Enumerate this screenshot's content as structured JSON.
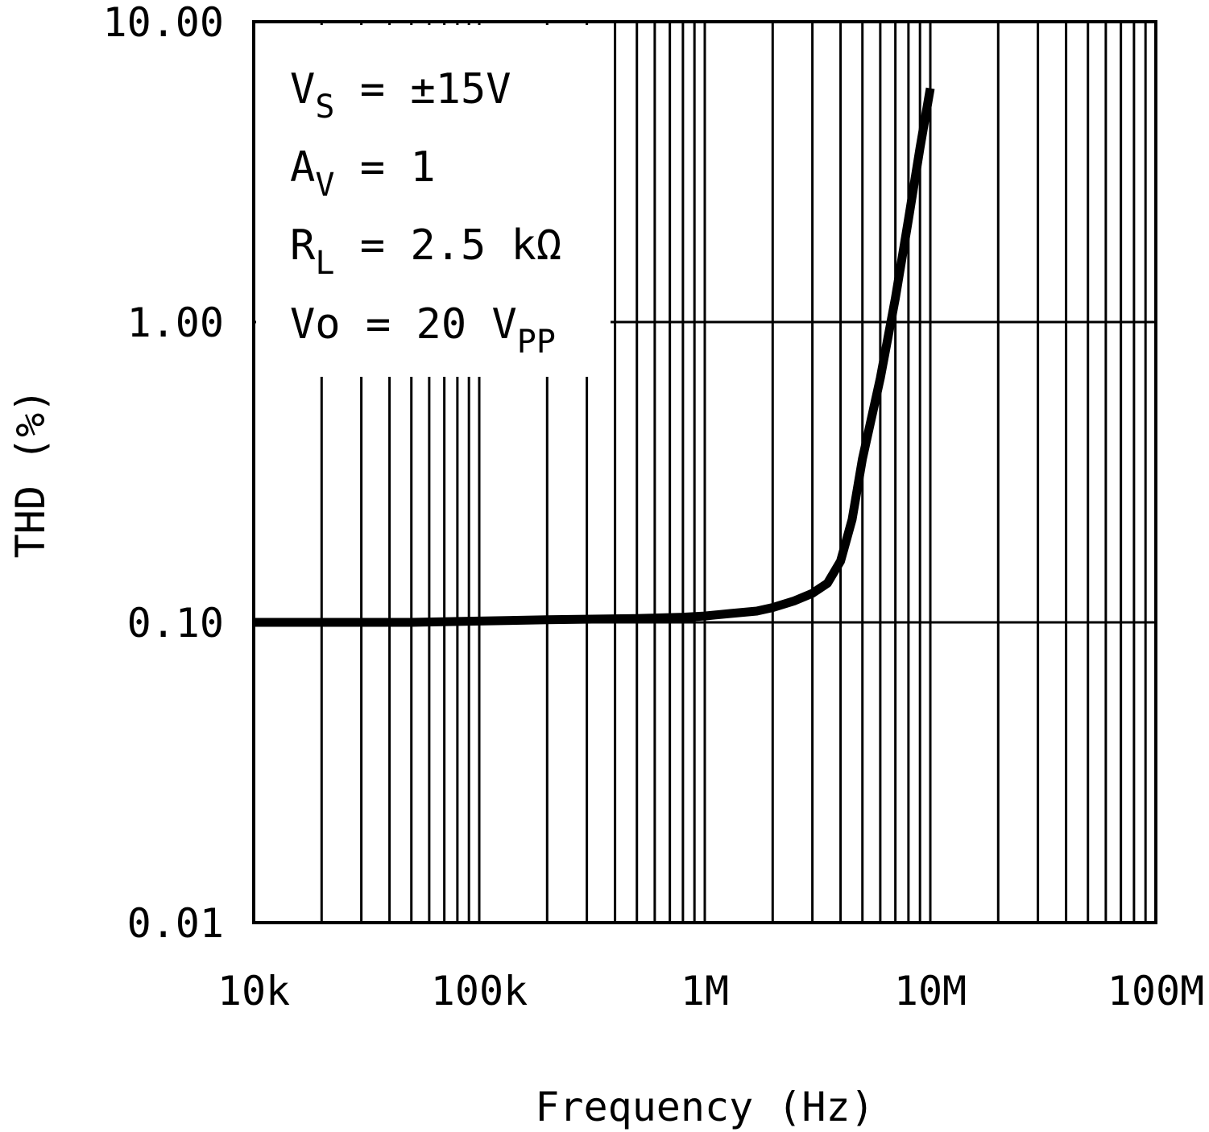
{
  "chart_data": {
    "type": "line",
    "title": "",
    "xlabel": "Frequency (Hz)",
    "ylabel": "THD (%)",
    "x_scale": "log",
    "y_scale": "log",
    "xlim": [
      10000,
      100000000
    ],
    "ylim": [
      0.01,
      10
    ],
    "grid": true,
    "x_tick_labels": [
      "10k",
      "100k",
      "1M",
      "10M",
      "100M"
    ],
    "y_tick_labels": [
      "10.00",
      "1.00",
      "0.10",
      "0.01"
    ],
    "series": [
      {
        "name": "THD",
        "x": [
          10000,
          20000,
          50000,
          100000,
          200000,
          500000,
          800000,
          1000000,
          1300000,
          1700000,
          2000000,
          2500000,
          3000000,
          3500000,
          4000000,
          4500000,
          5000000,
          6000000,
          7000000,
          8000000,
          9000000,
          10000000
        ],
        "y": [
          0.1,
          0.1,
          0.1,
          0.101,
          0.102,
          0.103,
          0.104,
          0.105,
          0.107,
          0.109,
          0.112,
          0.118,
          0.125,
          0.135,
          0.16,
          0.22,
          0.35,
          0.65,
          1.2,
          2.2,
          3.8,
          6.0
        ]
      }
    ],
    "annotations": {
      "vs": {
        "main": "V",
        "sub": "S",
        "rest": " =  ±15V"
      },
      "av": {
        "main": "A",
        "sub": "V",
        "rest": " =  1"
      },
      "rl": {
        "main": "R",
        "sub": "L",
        "rest": " =  2.5 kΩ"
      },
      "vo": {
        "main": "Vo =  20 V",
        "sub": "PP"
      }
    }
  }
}
